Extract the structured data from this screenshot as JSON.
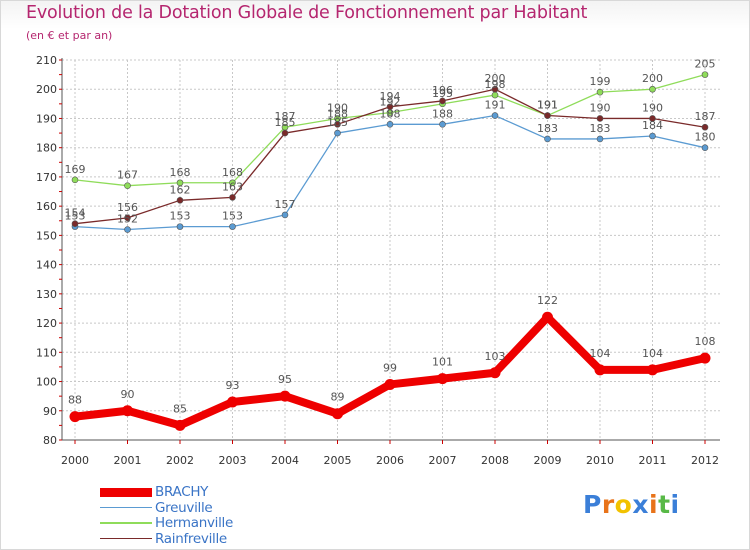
{
  "title": "Evolution de la Dotation Globale de Fonctionnement par Habitant",
  "subtitle": "(en € et par an)",
  "colors": {
    "BRACHY": "#ee0000",
    "Greuville": "#5b9bd2",
    "Hermanville": "#8fdc5a",
    "Rainfreville": "#7a2a2a"
  },
  "chart_data": {
    "type": "line",
    "title": "Evolution de la Dotation Globale de Fonctionnement par Habitant",
    "ylabel": "(en € et par an)",
    "xlabel": "",
    "categories": [
      "2000",
      "2001",
      "2002",
      "2003",
      "2004",
      "2005",
      "2006",
      "2007",
      "2008",
      "2009",
      "2010",
      "2011",
      "2012"
    ],
    "ylim": [
      80,
      210
    ],
    "yticks": [
      80,
      90,
      100,
      110,
      120,
      130,
      140,
      150,
      160,
      170,
      180,
      190,
      200,
      210
    ],
    "grid": true,
    "series": [
      {
        "name": "BRACHY",
        "values": [
          88,
          90,
          85,
          93,
          95,
          89,
          99,
          101,
          103,
          122,
          104,
          104,
          108
        ]
      },
      {
        "name": "Greuville",
        "values": [
          153,
          152,
          153,
          153,
          157,
          185,
          188,
          188,
          191,
          183,
          183,
          184,
          180
        ]
      },
      {
        "name": "Hermanville",
        "values": [
          169,
          167,
          168,
          168,
          187,
          190,
          192,
          195,
          198,
          191,
          199,
          200,
          205
        ]
      },
      {
        "name": "Rainfreville",
        "values": [
          154,
          156,
          162,
          163,
          185,
          188,
          194,
          196,
          200,
          191,
          190,
          190,
          187
        ]
      }
    ]
  },
  "legend": {
    "items": [
      {
        "label": "BRACHY"
      },
      {
        "label": "Greuville"
      },
      {
        "label": "Hermanville"
      },
      {
        "label": "Rainfreville"
      }
    ]
  },
  "logo": {
    "letters": [
      "P",
      "r",
      "o",
      "x",
      "i",
      "t",
      "i"
    ],
    "colors": [
      "#3b7fd8",
      "#e8731a",
      "#f2c200",
      "#3b7fd8",
      "#e8731a",
      "#58b947",
      "#3b7fd8"
    ]
  }
}
